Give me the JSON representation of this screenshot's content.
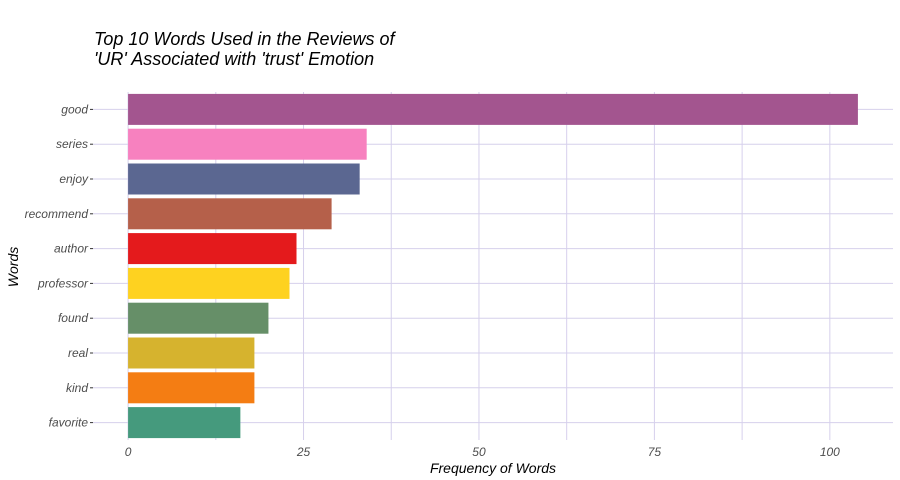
{
  "chart_data": {
    "type": "bar",
    "orientation": "horizontal",
    "title_lines": [
      "Top 10 Words Used in the Reviews of",
      "'UR'  Associated with  'trust' Emotion"
    ],
    "xlabel": "Frequency of Words",
    "ylabel": "Words",
    "categories": [
      "good",
      "series",
      "enjoy",
      "recommend",
      "author",
      "professor",
      "found",
      "real",
      "kind",
      "favorite"
    ],
    "values": [
      104,
      34,
      33,
      29,
      24,
      23,
      20,
      18,
      18,
      16
    ],
    "colors": [
      "#a3558f",
      "#f781bf",
      "#5b6791",
      "#b5604a",
      "#e41a1c",
      "#fed220",
      "#668f68",
      "#d6b32e",
      "#f47d13",
      "#459a7d"
    ],
    "xlim": [
      -5,
      109
    ],
    "xticks": [
      0,
      25,
      50,
      75,
      100
    ],
    "grid": true,
    "legend": "none"
  }
}
